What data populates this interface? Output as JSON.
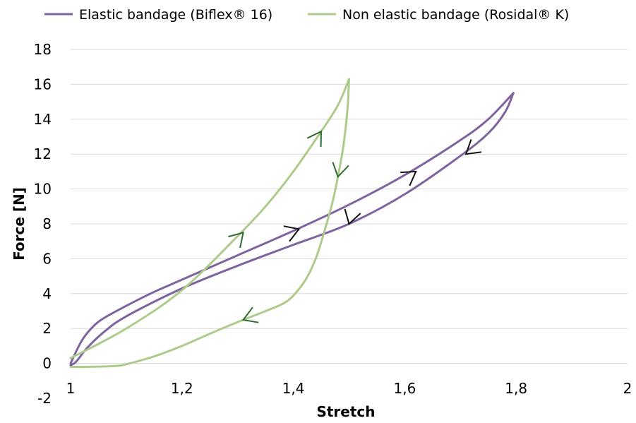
{
  "chart_data": {
    "type": "line",
    "title": "",
    "xlabel": "Stretch",
    "ylabel": "Force [N]",
    "xlim": [
      1,
      2
    ],
    "ylim": [
      -2,
      18
    ],
    "xticks": [
      1,
      1.2,
      1.4,
      1.6,
      1.8,
      2
    ],
    "xtick_labels": [
      "1",
      "1,2",
      "1,4",
      "1,6",
      "1,8",
      "2"
    ],
    "yticks": [
      -2,
      0,
      2,
      4,
      6,
      8,
      10,
      12,
      14,
      16,
      18
    ],
    "ytick_labels": [
      "-2",
      "0",
      "2",
      "4",
      "6",
      "8",
      "10",
      "12",
      "14",
      "16",
      "18"
    ],
    "grid": "horizontal",
    "legend_position": "top",
    "series": [
      {
        "name": "Elastic bandage (Biflex® 16)",
        "color": "#7e649e",
        "loading": {
          "x": [
            1.0,
            1.02,
            1.04,
            1.06,
            1.1,
            1.15,
            1.2,
            1.3,
            1.4,
            1.5,
            1.6,
            1.7,
            1.75,
            1.795
          ],
          "y": [
            0.0,
            1.3,
            2.1,
            2.6,
            3.3,
            4.1,
            4.8,
            6.2,
            7.6,
            9.1,
            10.8,
            12.8,
            14.0,
            15.5
          ]
        },
        "unloading": {
          "x": [
            1.795,
            1.78,
            1.75,
            1.7,
            1.6,
            1.5,
            1.4,
            1.3,
            1.2,
            1.1,
            1.06,
            1.03,
            1.01,
            1.0
          ],
          "y": [
            15.5,
            14.4,
            13.2,
            11.9,
            9.7,
            8.0,
            6.8,
            5.6,
            4.3,
            2.7,
            1.8,
            0.9,
            0.1,
            -0.1
          ]
        }
      },
      {
        "name": "Non elastic bandage (Rosidal® K)",
        "color": "#aecb8c",
        "loading": {
          "x": [
            1.0,
            1.1,
            1.2,
            1.3,
            1.35,
            1.4,
            1.45,
            1.48,
            1.5
          ],
          "y": [
            0.3,
            2.0,
            4.2,
            7.3,
            9.0,
            11.0,
            13.3,
            14.8,
            16.3
          ]
        },
        "unloading": {
          "x": [
            1.5,
            1.497,
            1.49,
            1.48,
            1.47,
            1.455,
            1.44,
            1.42,
            1.39,
            1.35,
            1.31,
            1.25,
            1.2,
            1.15,
            1.1,
            1.08,
            1.03,
            1.0
          ],
          "y": [
            16.3,
            14.5,
            12.5,
            10.7,
            9.2,
            7.5,
            6.0,
            4.7,
            3.6,
            3.0,
            2.5,
            1.7,
            1.0,
            0.4,
            -0.05,
            -0.15,
            -0.2,
            -0.2
          ]
        }
      }
    ],
    "arrows": [
      {
        "x": 1.31,
        "y": 7.5,
        "dir": "up",
        "color": "#2e6b2e"
      },
      {
        "x": 1.45,
        "y": 13.3,
        "dir": "up",
        "color": "#2e6b2e"
      },
      {
        "x": 1.48,
        "y": 10.7,
        "dir": "down",
        "color": "#2e6b2e"
      },
      {
        "x": 1.31,
        "y": 2.5,
        "dir": "down",
        "color": "#2e6b2e"
      },
      {
        "x": 1.41,
        "y": 7.7,
        "dir": "up",
        "color": "#111111"
      },
      {
        "x": 1.62,
        "y": 11.0,
        "dir": "up",
        "color": "#111111"
      },
      {
        "x": 1.71,
        "y": 12.0,
        "dir": "down",
        "color": "#111111"
      },
      {
        "x": 1.5,
        "y": 8.0,
        "dir": "down",
        "color": "#111111"
      }
    ]
  }
}
